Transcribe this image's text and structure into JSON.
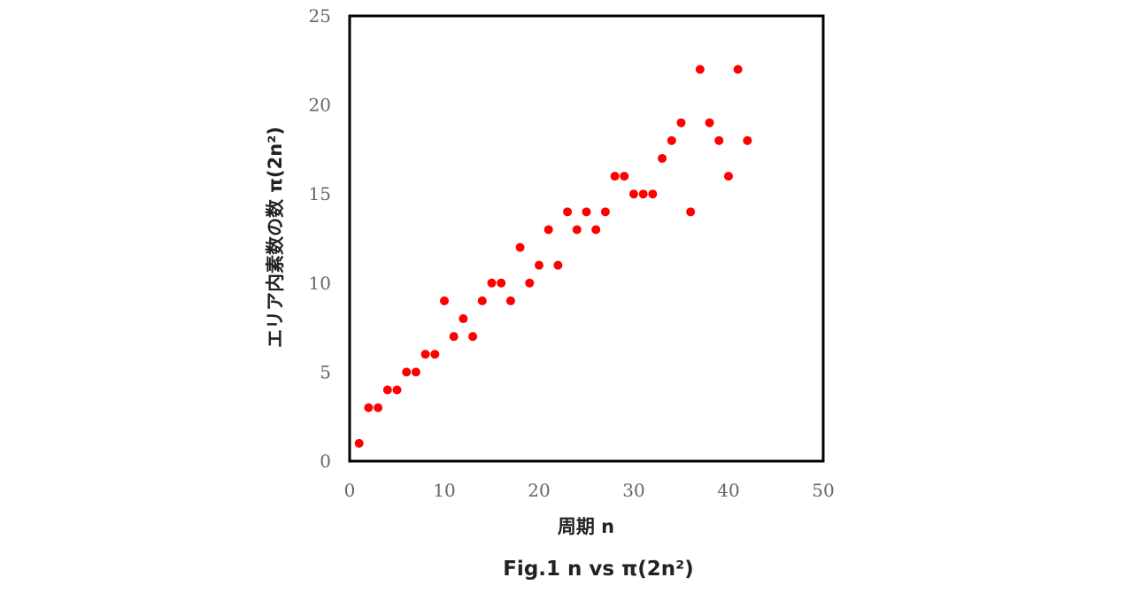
{
  "chart_data": {
    "type": "scatter",
    "xlabel": "周期 n",
    "ylabel": "エリア内素数の数 π(2n²)",
    "caption": "Fig.1 n vs π(2n²)",
    "xlim": [
      0,
      50
    ],
    "ylim": [
      0,
      25
    ],
    "x_ticks": [
      "0",
      "10",
      "20",
      "30",
      "40",
      "50"
    ],
    "y_ticks": [
      "0",
      "5",
      "10",
      "15",
      "20",
      "25"
    ],
    "grid": false,
    "legend": "none",
    "marker_color": "#ff0000",
    "series": [
      {
        "x": [
          1,
          2,
          3,
          4,
          5,
          6,
          7,
          8,
          9,
          10,
          11,
          12,
          13,
          14,
          15,
          16,
          17,
          18,
          19,
          20,
          21,
          22,
          23,
          24,
          25,
          26,
          27,
          28,
          29,
          30,
          31,
          32,
          33,
          34,
          35,
          36,
          37,
          38,
          39,
          40,
          41,
          42
        ],
        "values": [
          1,
          3,
          3,
          4,
          4,
          5,
          5,
          6,
          6,
          9,
          7,
          8,
          7,
          9,
          10,
          10,
          9,
          12,
          10,
          11,
          13,
          11,
          14,
          13,
          14,
          13,
          14,
          16,
          16,
          15,
          15,
          15,
          17,
          18,
          19,
          14,
          22,
          19,
          18,
          16,
          22,
          18
        ]
      }
    ]
  }
}
